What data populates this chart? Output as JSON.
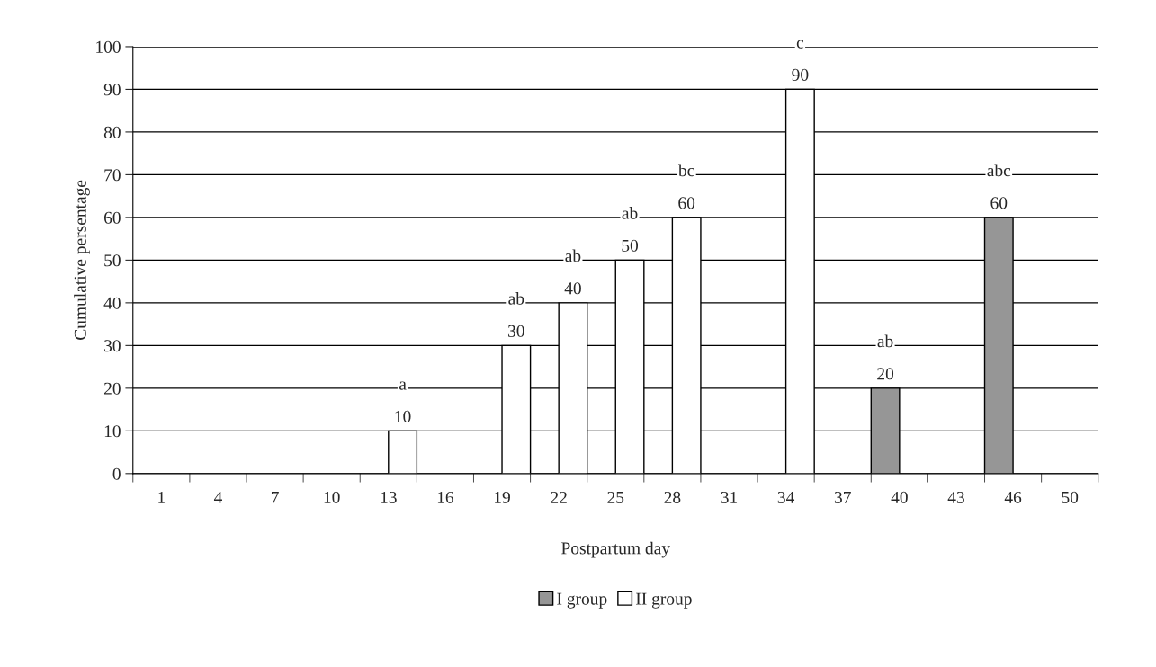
{
  "chart_data": {
    "type": "bar",
    "xlabel": "Postpartum day",
    "ylabel": "Cumulative persentage",
    "categories": [
      "1",
      "4",
      "7",
      "10",
      "13",
      "16",
      "19",
      "22",
      "25",
      "28",
      "31",
      "34",
      "37",
      "40",
      "43",
      "46",
      "50"
    ],
    "series": [
      {
        "name": "I group",
        "color": "#969696",
        "values": [
          null,
          null,
          null,
          null,
          null,
          null,
          null,
          null,
          null,
          null,
          null,
          null,
          null,
          20,
          null,
          60,
          null
        ]
      },
      {
        "name": "II group",
        "color": "#ffffff",
        "values": [
          null,
          null,
          null,
          null,
          10,
          null,
          30,
          40,
          50,
          60,
          null,
          90,
          null,
          null,
          null,
          null,
          null
        ]
      }
    ],
    "ylim": [
      0,
      100
    ],
    "yticks": [
      0,
      10,
      20,
      30,
      40,
      50,
      60,
      70,
      80,
      90,
      100
    ],
    "grid": "y",
    "legend": "bottom",
    "data_labels": true,
    "annotations": [
      "a",
      "ab",
      "ab",
      "ab",
      "bc",
      "c",
      "ab",
      "abc"
    ]
  }
}
